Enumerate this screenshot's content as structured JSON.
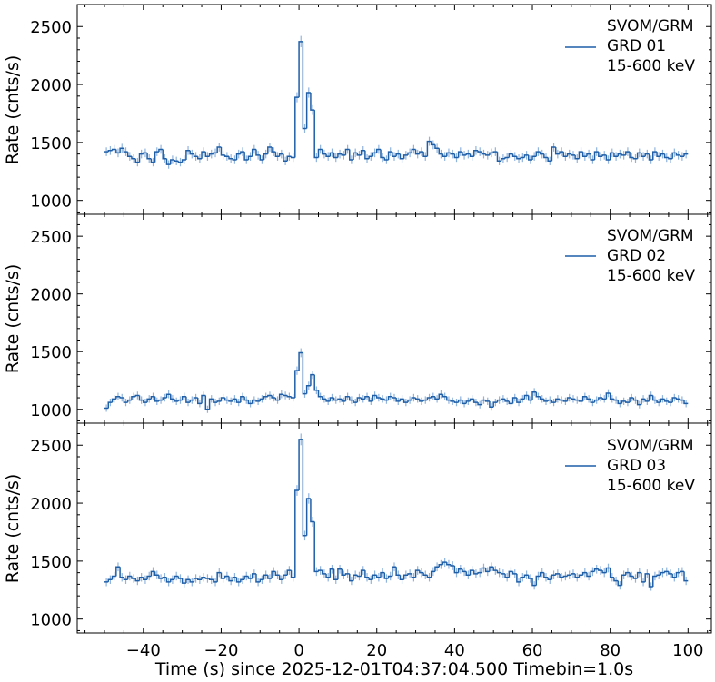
{
  "chart_data": [
    {
      "type": "line",
      "style": "step-histogram-with-errorbars",
      "title": "",
      "legend": [
        "SVOM/GRM",
        "GRD 01",
        "15-600 keV"
      ],
      "legend_placement": "top-right",
      "ylabel": "Rate (cnts/s)",
      "xlabel": "",
      "ylim": [
        880,
        2690
      ],
      "yticks": [
        "1000",
        "1500",
        "2000",
        "2500"
      ],
      "x_start": -50,
      "bin_width": 1,
      "values": [
        1420,
        1430,
        1440,
        1410,
        1450,
        1420,
        1380,
        1360,
        1330,
        1400,
        1410,
        1360,
        1330,
        1420,
        1440,
        1360,
        1310,
        1350,
        1340,
        1330,
        1350,
        1430,
        1400,
        1380,
        1360,
        1420,
        1380,
        1400,
        1410,
        1460,
        1390,
        1380,
        1360,
        1350,
        1400,
        1420,
        1350,
        1380,
        1440,
        1390,
        1350,
        1400,
        1460,
        1420,
        1380,
        1400,
        1340,
        1380,
        1370,
        1890,
        2370,
        1620,
        1930,
        1780,
        1370,
        1440,
        1400,
        1380,
        1410,
        1370,
        1400,
        1390,
        1440,
        1350,
        1410,
        1390,
        1430,
        1360,
        1380,
        1410,
        1440,
        1370,
        1350,
        1420,
        1380,
        1400,
        1360,
        1390,
        1410,
        1440,
        1400,
        1420,
        1380,
        1510,
        1480,
        1450,
        1400,
        1380,
        1410,
        1400,
        1370,
        1420,
        1390,
        1400,
        1380,
        1430,
        1420,
        1400,
        1390,
        1410,
        1420,
        1340,
        1360,
        1370,
        1400,
        1380,
        1360,
        1370,
        1390,
        1350,
        1380,
        1420,
        1400,
        1370,
        1340,
        1460,
        1400,
        1420,
        1380,
        1400,
        1390,
        1360,
        1420,
        1380,
        1400,
        1350,
        1420,
        1380,
        1390,
        1350,
        1410,
        1380,
        1400,
        1390,
        1420,
        1370,
        1360,
        1410,
        1380,
        1400,
        1350,
        1420,
        1380,
        1400,
        1370,
        1360,
        1410,
        1390,
        1380,
        1400
      ]
    },
    {
      "type": "line",
      "style": "step-histogram-with-errorbars",
      "title": "",
      "legend": [
        "SVOM/GRM",
        "GRD 02",
        "15-600 keV"
      ],
      "legend_placement": "top-right",
      "ylabel": "Rate (cnts/s)",
      "xlabel": "",
      "ylim": [
        880,
        2690
      ],
      "yticks": [
        "1000",
        "1500",
        "2000",
        "2500"
      ],
      "x_start": -50,
      "bin_width": 1,
      "values": [
        1010,
        1060,
        1090,
        1110,
        1100,
        1060,
        1080,
        1110,
        1120,
        1080,
        1060,
        1090,
        1110,
        1070,
        1080,
        1100,
        1130,
        1090,
        1070,
        1080,
        1110,
        1060,
        1080,
        1100,
        1050,
        1120,
        1000,
        1090,
        1060,
        1070,
        1100,
        1080,
        1070,
        1090,
        1060,
        1110,
        1080,
        1050,
        1080,
        1070,
        1090,
        1110,
        1120,
        1100,
        1080,
        1130,
        1120,
        1110,
        1100,
        1335,
        1490,
        1135,
        1205,
        1300,
        1165,
        1110,
        1090,
        1070,
        1100,
        1080,
        1090,
        1070,
        1110,
        1080,
        1060,
        1100,
        1090,
        1110,
        1070,
        1120,
        1100,
        1090,
        1080,
        1110,
        1100,
        1070,
        1090,
        1060,
        1080,
        1100,
        1090,
        1070,
        1080,
        1100,
        1110,
        1090,
        1130,
        1110,
        1080,
        1070,
        1060,
        1080,
        1050,
        1070,
        1090,
        1060,
        1040,
        1080,
        1070,
        1020,
        1060,
        1080,
        1090,
        1070,
        1050,
        1100,
        1060,
        1090,
        1120,
        1080,
        1150,
        1110,
        1090,
        1070,
        1080,
        1060,
        1090,
        1080,
        1070,
        1100,
        1090,
        1080,
        1070,
        1110,
        1090,
        1060,
        1080,
        1100,
        1090,
        1140,
        1090,
        1080,
        1050,
        1070,
        1060,
        1100,
        1080,
        1040,
        1090,
        1070,
        1120,
        1080,
        1060,
        1090,
        1070,
        1060,
        1100,
        1090,
        1080,
        1050
      ]
    },
    {
      "type": "line",
      "style": "step-histogram-with-errorbars",
      "title": "",
      "legend": [
        "SVOM/GRM",
        "GRD 03",
        "15-600 keV"
      ],
      "legend_placement": "top-right",
      "ylabel": "Rate (cnts/s)",
      "xlabel": "Time (s) since 2025-12-01T04:37:04.500 Timebin=1.0s",
      "ylim": [
        880,
        2690
      ],
      "yticks": [
        "1000",
        "1500",
        "2000",
        "2500"
      ],
      "xlim": [
        -57,
        106
      ],
      "xticks": [
        "−40",
        "−20",
        "0",
        "20",
        "40",
        "60",
        "80",
        "100"
      ],
      "x_start": -50,
      "bin_width": 1,
      "values": [
        1320,
        1340,
        1370,
        1450,
        1360,
        1340,
        1370,
        1350,
        1330,
        1360,
        1340,
        1370,
        1410,
        1380,
        1350,
        1360,
        1320,
        1340,
        1370,
        1350,
        1310,
        1340,
        1320,
        1350,
        1340,
        1360,
        1350,
        1340,
        1320,
        1400,
        1350,
        1370,
        1330,
        1360,
        1320,
        1340,
        1370,
        1350,
        1390,
        1320,
        1340,
        1380,
        1350,
        1410,
        1380,
        1340,
        1380,
        1420,
        1360,
        2110,
        2550,
        1720,
        2040,
        1840,
        1410,
        1420,
        1390,
        1360,
        1430,
        1340,
        1430,
        1380,
        1390,
        1330,
        1380,
        1370,
        1420,
        1360,
        1340,
        1380,
        1360,
        1400,
        1350,
        1370,
        1450,
        1380,
        1340,
        1380,
        1390,
        1360,
        1420,
        1400,
        1380,
        1360,
        1410,
        1450,
        1470,
        1490,
        1470,
        1460,
        1400,
        1430,
        1410,
        1380,
        1420,
        1390,
        1400,
        1440,
        1410,
        1450,
        1420,
        1400,
        1390,
        1360,
        1410,
        1390,
        1320,
        1360,
        1380,
        1350,
        1290,
        1370,
        1400,
        1360,
        1340,
        1380,
        1390,
        1360,
        1370,
        1380,
        1390,
        1360,
        1380,
        1400,
        1370,
        1410,
        1430,
        1420,
        1400,
        1440,
        1360,
        1330,
        1290,
        1380,
        1400,
        1370,
        1350,
        1400,
        1320,
        1390,
        1280,
        1370,
        1380,
        1400,
        1410,
        1390,
        1360,
        1400,
        1410,
        1330
      ]
    }
  ],
  "colors": {
    "line": "#1f5fa8",
    "errorbar": "#8fb4de"
  }
}
